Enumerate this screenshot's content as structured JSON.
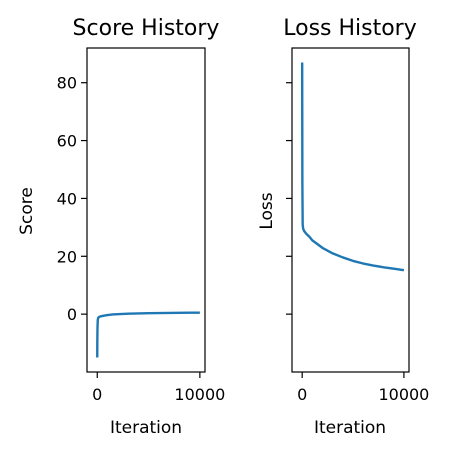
{
  "chart_data": [
    {
      "type": "line",
      "title": "Score History",
      "xlabel": "Iteration",
      "ylabel": "Score",
      "xlim": [
        -1000,
        10500
      ],
      "ylim": [
        -20,
        92
      ],
      "xticks": [
        0,
        10000
      ],
      "xtick_labels": [
        "0",
        "10000"
      ],
      "yticks": [
        0,
        20,
        40,
        60,
        80
      ],
      "ytick_labels": [
        "0",
        "20",
        "40",
        "60",
        "80"
      ],
      "show_ytick_labels": true,
      "grid": false,
      "color": "#1f77b4",
      "series": [
        {
          "x": [
            0,
            5,
            20,
            50,
            100,
            200,
            400,
            700,
            1000,
            1500,
            2000,
            3000,
            4000,
            5000,
            6000,
            7000,
            8000,
            9000,
            10000
          ],
          "y": [
            -15,
            -10,
            -5,
            -2,
            -1.2,
            -0.9,
            -0.7,
            -0.5,
            -0.3,
            -0.1,
            0.0,
            0.15,
            0.25,
            0.32,
            0.38,
            0.42,
            0.46,
            0.49,
            0.52
          ]
        }
      ]
    },
    {
      "type": "line",
      "title": "Loss History",
      "xlabel": "Iteration",
      "ylabel": "Loss",
      "xlim": [
        -1000,
        10500
      ],
      "ylim": [
        -20,
        92
      ],
      "xticks": [
        0,
        10000
      ],
      "xtick_labels": [
        "0",
        "10000"
      ],
      "yticks": [
        0,
        20,
        40,
        60,
        80
      ],
      "ytick_labels": [
        "",
        "",
        "",
        "",
        ""
      ],
      "show_ytick_labels": false,
      "grid": false,
      "color": "#1f77b4",
      "series": [
        {
          "x": [
            0,
            5,
            20,
            50,
            100,
            200,
            400,
            700,
            1000,
            1500,
            2000,
            3000,
            4000,
            5000,
            6000,
            7000,
            8000,
            9000,
            10000
          ],
          "y": [
            87,
            75,
            45,
            31,
            29.5,
            28.7,
            27.8,
            26.8,
            25.5,
            24.2,
            22.9,
            21.0,
            19.6,
            18.4,
            17.5,
            16.8,
            16.2,
            15.7,
            15.2
          ]
        }
      ]
    }
  ]
}
